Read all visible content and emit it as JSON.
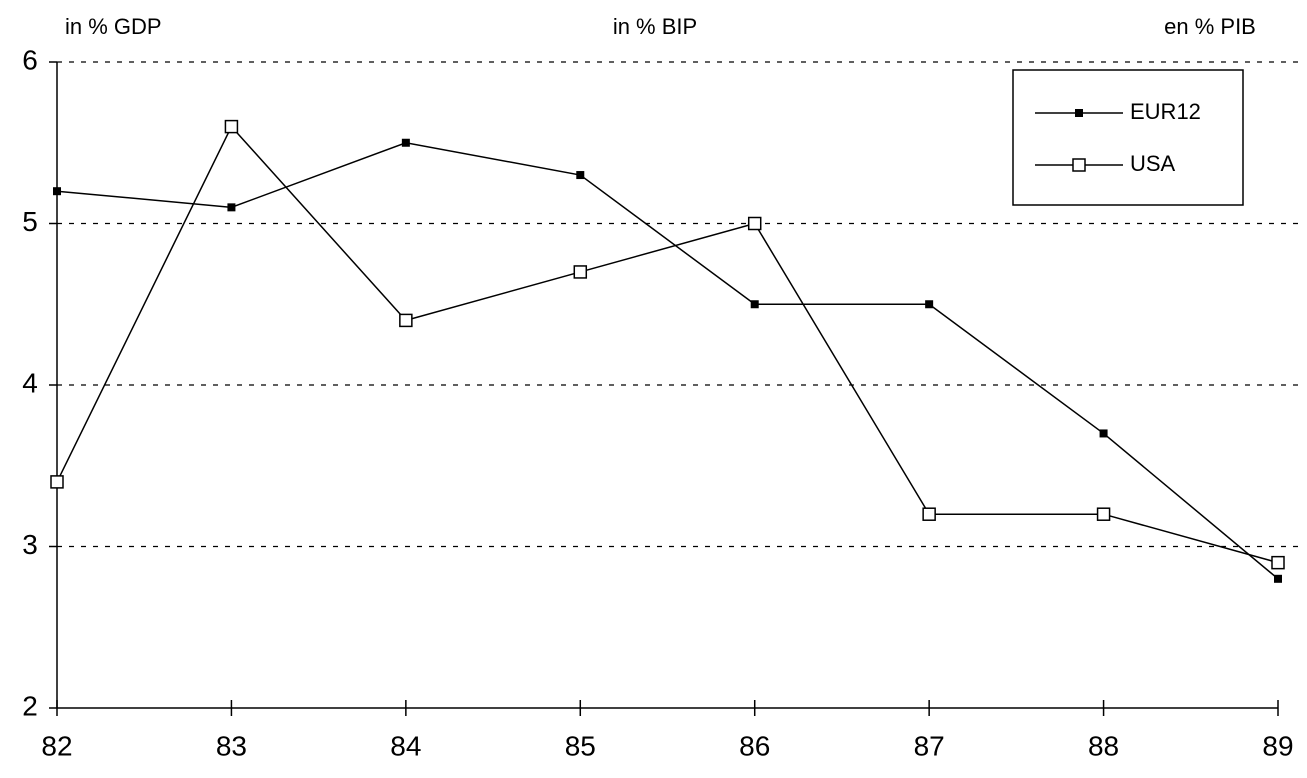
{
  "chart_data": {
    "type": "line",
    "annotations": [
      "in % GDP",
      "in % BIP",
      "en % PIB"
    ],
    "categories": [
      "82",
      "83",
      "84",
      "85",
      "86",
      "87",
      "88",
      "89"
    ],
    "series": [
      {
        "name": "EUR12",
        "color": "#000000",
        "marker": "square-filled",
        "values": [
          5.2,
          5.1,
          5.5,
          5.3,
          4.5,
          4.5,
          3.7,
          2.8
        ]
      },
      {
        "name": "USA",
        "color": "#000000",
        "marker": "square-open",
        "values": [
          3.4,
          5.6,
          4.4,
          4.7,
          5.0,
          3.2,
          3.2,
          2.9
        ]
      }
    ],
    "ylim": [
      2,
      6
    ],
    "yticks": [
      2,
      3,
      4,
      5,
      6
    ],
    "grid": true,
    "legend": "top-right"
  }
}
